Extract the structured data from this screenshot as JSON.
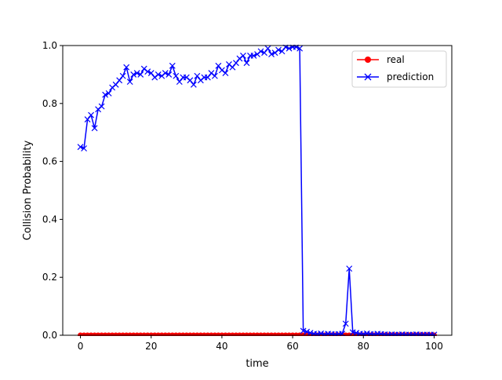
{
  "chart_data": {
    "type": "line",
    "title": "",
    "xlabel": "time",
    "ylabel": "Collision Probability",
    "xlim": [
      -5,
      105
    ],
    "ylim": [
      0,
      1.0
    ],
    "xticks": [
      0,
      20,
      40,
      60,
      80,
      100
    ],
    "yticks": [
      0.0,
      0.2,
      0.4,
      0.6,
      0.8,
      1.0
    ],
    "xtick_labels": [
      "0",
      "20",
      "40",
      "60",
      "80",
      "100"
    ],
    "ytick_labels": [
      "0.0",
      "0.2",
      "0.4",
      "0.6",
      "0.8",
      "1.0"
    ],
    "grid": false,
    "legend_position": "top-right",
    "x": [
      0,
      1,
      2,
      3,
      4,
      5,
      6,
      7,
      8,
      9,
      10,
      11,
      12,
      13,
      14,
      15,
      16,
      17,
      18,
      19,
      20,
      21,
      22,
      23,
      24,
      25,
      26,
      27,
      28,
      29,
      30,
      31,
      32,
      33,
      34,
      35,
      36,
      37,
      38,
      39,
      40,
      41,
      42,
      43,
      44,
      45,
      46,
      47,
      48,
      49,
      50,
      51,
      52,
      53,
      54,
      55,
      56,
      57,
      58,
      59,
      60,
      61,
      62,
      63,
      64,
      65,
      66,
      67,
      68,
      69,
      70,
      71,
      72,
      73,
      74,
      75,
      76,
      77,
      78,
      79,
      80,
      81,
      82,
      83,
      84,
      85,
      86,
      87,
      88,
      89,
      90,
      91,
      92,
      93,
      94,
      95,
      96,
      97,
      98,
      99,
      100
    ],
    "series": [
      {
        "name": "real",
        "color": "#ff0000",
        "marker": "circle",
        "values": [
          0,
          0,
          0,
          0,
          0,
          0,
          0,
          0,
          0,
          0,
          0,
          0,
          0,
          0,
          0,
          0,
          0,
          0,
          0,
          0,
          0,
          0,
          0,
          0,
          0,
          0,
          0,
          0,
          0,
          0,
          0,
          0,
          0,
          0,
          0,
          0,
          0,
          0,
          0,
          0,
          0,
          0,
          0,
          0,
          0,
          0,
          0,
          0,
          0,
          0,
          0,
          0,
          0,
          0,
          0,
          0,
          0,
          0,
          0,
          0,
          0,
          0,
          0,
          0,
          0,
          0,
          0,
          0,
          0,
          0,
          0,
          0,
          0,
          0,
          0,
          0,
          0,
          0,
          0,
          0,
          0,
          0,
          0,
          0,
          0,
          0,
          0,
          0,
          0,
          0,
          0,
          0,
          0,
          0,
          0,
          0,
          0,
          0,
          0,
          0,
          0
        ]
      },
      {
        "name": "prediction",
        "color": "#0000ff",
        "marker": "x",
        "values": [
          0.65,
          0.645,
          0.745,
          0.76,
          0.715,
          0.78,
          0.79,
          0.83,
          0.835,
          0.855,
          0.865,
          0.88,
          0.895,
          0.925,
          0.875,
          0.9,
          0.905,
          0.9,
          0.92,
          0.91,
          0.905,
          0.89,
          0.9,
          0.895,
          0.905,
          0.9,
          0.93,
          0.895,
          0.875,
          0.89,
          0.89,
          0.88,
          0.865,
          0.895,
          0.88,
          0.89,
          0.89,
          0.905,
          0.895,
          0.93,
          0.915,
          0.905,
          0.935,
          0.925,
          0.94,
          0.955,
          0.965,
          0.94,
          0.965,
          0.965,
          0.97,
          0.98,
          0.975,
          0.99,
          0.97,
          0.975,
          0.985,
          0.98,
          0.995,
          0.99,
          0.995,
          0.995,
          0.99,
          0.015,
          0.012,
          0.008,
          0.005,
          0.004,
          0.006,
          0.003,
          0.005,
          0.004,
          0.003,
          0.004,
          0.005,
          0.04,
          0.23,
          0.01,
          0.008,
          0.005,
          0.004,
          0.006,
          0.004,
          0.003,
          0.005,
          0.004,
          0.003,
          0.002,
          0.003,
          0.002,
          0.002,
          0.003,
          0.002,
          0.002,
          0.002,
          0.003,
          0.002,
          0.002,
          0.002,
          0.002,
          0.002
        ]
      }
    ]
  }
}
